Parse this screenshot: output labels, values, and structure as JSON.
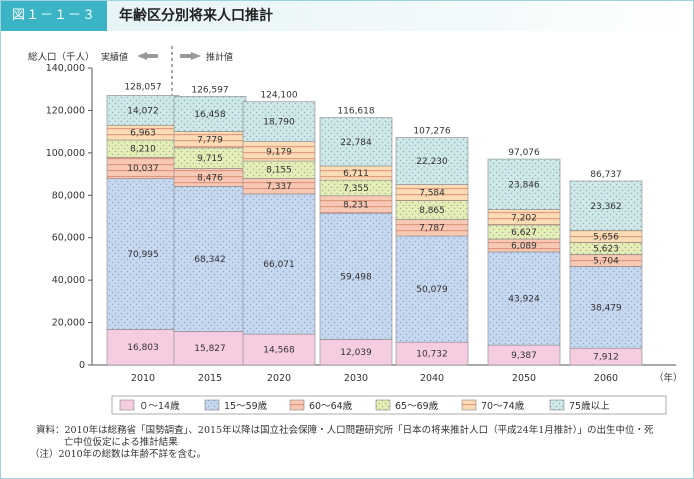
{
  "header": {
    "figure_number": "図１－１－３",
    "title": "年齢区分別将来人口推計"
  },
  "chart_data": {
    "type": "bar",
    "stacked": true,
    "ylabel": "総人口（千人）",
    "xlabel_unit": "（年）",
    "ylim": [
      0,
      140000
    ],
    "yticks": [
      "0",
      "20,000",
      "40,000",
      "60,000",
      "80,000",
      "100,000",
      "120,000",
      "140,000"
    ],
    "ytick_values": [
      0,
      20000,
      40000,
      60000,
      80000,
      100000,
      120000,
      140000
    ],
    "categories": [
      "2010",
      "2015",
      "2020",
      "2030",
      "2040",
      "2050",
      "2060"
    ],
    "actual_label": "実績値",
    "projected_label": "推計値",
    "totals": [
      128057,
      126597,
      124100,
      116618,
      107276,
      97076,
      86737
    ],
    "totals_text": [
      "128,057",
      "126,597",
      "124,100",
      "116,618",
      "107,276",
      "97,076",
      "86,737"
    ],
    "series": [
      {
        "name": "０～14歳",
        "color": "#f6cde0",
        "pattern": "none",
        "values": [
          16803,
          15827,
          14568,
          12039,
          10732,
          9387,
          7912
        ],
        "labels": [
          "16,803",
          "15,827",
          "14,568",
          "12,039",
          "10,732",
          "9,387",
          "7,912"
        ]
      },
      {
        "name": "15～59歳",
        "color": "#c6d7f0",
        "pattern": "dots",
        "values": [
          70995,
          68342,
          66071,
          59498,
          50079,
          43924,
          38479
        ],
        "labels": [
          "70,995",
          "68,342",
          "66,071",
          "59,498",
          "50,079",
          "43,924",
          "38,479"
        ]
      },
      {
        "name": "60～64歳",
        "color": "#f7c9b4",
        "pattern": "stripes",
        "values": [
          10037,
          8476,
          7337,
          8231,
          7787,
          6089,
          5704
        ],
        "labels": [
          "10,037",
          "8,476",
          "7,337",
          "8,231",
          "7,787",
          "6,089",
          "5,704"
        ]
      },
      {
        "name": "65～69歳",
        "color": "#e5efb3",
        "pattern": "dots",
        "values": [
          8210,
          9715,
          8155,
          7355,
          8865,
          6627,
          5623
        ],
        "labels": [
          "8,210",
          "9,715",
          "8,155",
          "7,355",
          "8,865",
          "6,627",
          "5,623"
        ]
      },
      {
        "name": "70～74歳",
        "color": "#fbdcb5",
        "pattern": "stripes",
        "values": [
          6963,
          7779,
          9179,
          6711,
          7584,
          7202,
          5656
        ],
        "labels": [
          "6,963",
          "7,779",
          "9,179",
          "6,711",
          "7,584",
          "7,202",
          "5,656"
        ]
      },
      {
        "name": "75歳以上",
        "color": "#cde8e6",
        "pattern": "dots",
        "values": [
          14072,
          16458,
          18790,
          22784,
          22230,
          23846,
          23362
        ],
        "labels": [
          "14,072",
          "16,458",
          "18,790",
          "22,784",
          "22,230",
          "23,846",
          "23,362"
        ]
      }
    ],
    "legend_position": "bottom"
  },
  "footnotes": {
    "source_line1": "資料：2010年は総務省「国勢調査」、2015年以降は国立社会保障・人口問題研究所「日本の将来推計人口（平成24年1月推計）」の出生中位・死",
    "source_line2": "亡中位仮定による推計結果",
    "note": "（注）2010年の総数は年齢不詳を含む。"
  }
}
